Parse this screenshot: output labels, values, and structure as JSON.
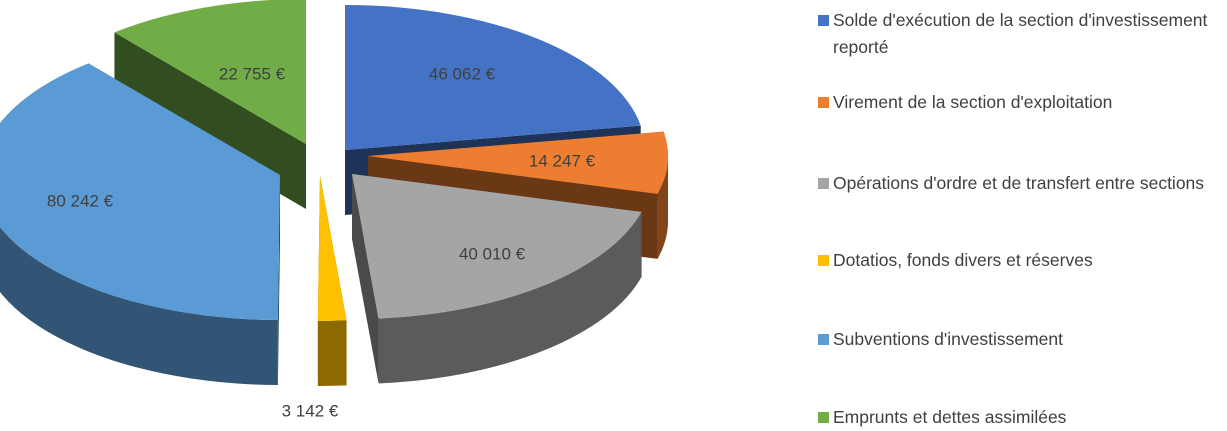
{
  "chart_data": {
    "type": "pie",
    "title": "",
    "unit": "€",
    "slices": [
      {
        "label": "Solde d'exécution de la section d'investissement reporté",
        "value": 46062,
        "value_label": "46 062 €",
        "color": "#4472C4"
      },
      {
        "label": "Virement de la section d'exploitation",
        "value": 14247,
        "value_label": "14 247 €",
        "color": "#ED7D31"
      },
      {
        "label": "Opérations d'ordre et de transfert entre sections",
        "value": 40010,
        "value_label": "40 010 €",
        "color": "#A5A5A5"
      },
      {
        "label": "Dotatios, fonds divers et réserves",
        "value": 3142,
        "value_label": "3 142 €",
        "color": "#FFC000"
      },
      {
        "label": "Subventions d'investissement",
        "value": 80242,
        "value_label": "80 242 €",
        "color": "#5B9BD5"
      },
      {
        "label": "Emprunts et dettes assimilées",
        "value": 22755,
        "value_label": "22 755 €",
        "color": "#70AD47"
      }
    ],
    "legend_position": "right",
    "style": "exploded-3d"
  }
}
